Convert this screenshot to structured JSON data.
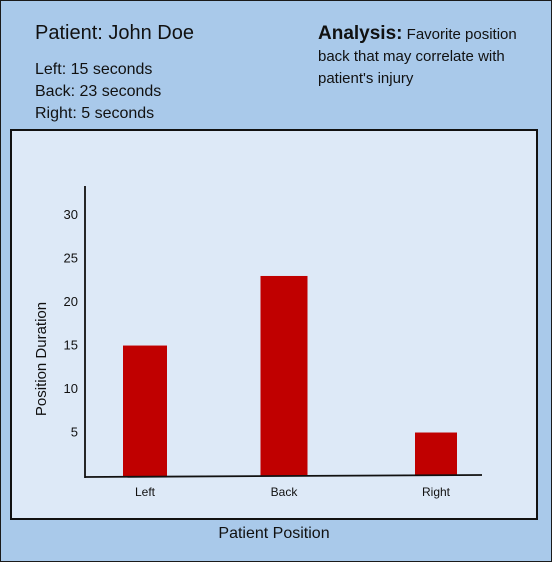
{
  "header": {
    "patient_title": "Patient: John Doe",
    "durations": [
      "Left: 15 seconds",
      "Back: 23 seconds",
      "Right: 5 seconds"
    ],
    "analysis_heading": "Analysis:",
    "analysis_text": " Favorite position back that may correlate with patient's injury"
  },
  "colors": {
    "background": "#a9c9ea",
    "plot_background": "#dde9f7",
    "bar": "#c00000"
  },
  "chart_data": {
    "type": "bar",
    "categories": [
      "Left",
      "Back",
      "Right"
    ],
    "values": [
      15,
      23,
      5
    ],
    "xlabel": "Patient Position",
    "ylabel": "Position Duration",
    "yticks": [
      5,
      10,
      15,
      20,
      25,
      30
    ],
    "ylim": [
      0,
      33
    ],
    "grid": false,
    "legend": "none"
  }
}
